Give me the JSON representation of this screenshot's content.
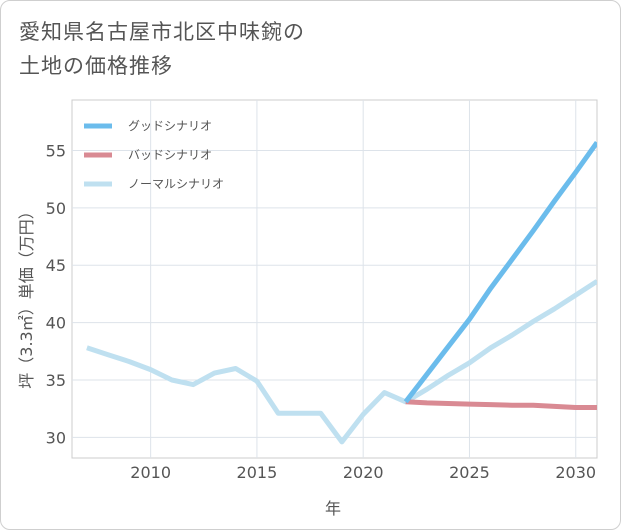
{
  "title_lines": [
    "愛知県名古屋市北区中味鋺の",
    "土地の価格推移"
  ],
  "chart_data": {
    "type": "line",
    "xlabel": "年",
    "ylabel": "坪（3.3㎡）単価（万円）",
    "xlim": [
      2006.3,
      2031
    ],
    "ylim": [
      28.2,
      59.4
    ],
    "xticks": [
      2010,
      2015,
      2020,
      2025,
      2030
    ],
    "xtick_labels": [
      "2010",
      "2015",
      "2020",
      "2025",
      "2030"
    ],
    "yticks": [
      30,
      35,
      40,
      45,
      50,
      55
    ],
    "ytick_labels": [
      "30",
      "35",
      "40",
      "45",
      "50",
      "55"
    ],
    "grid": true,
    "legend_position": "top-left",
    "series": [
      {
        "name": "グッドシナリオ",
        "color": "#6bbcec",
        "x": [
          2022,
          2023,
          2024,
          2025,
          2026,
          2027,
          2028,
          2029,
          2030,
          2031
        ],
        "y": [
          33.1,
          35.5,
          37.9,
          40.3,
          43.0,
          45.5,
          48.0,
          50.6,
          53.1,
          55.7
        ]
      },
      {
        "name": "バッドシナリオ",
        "color": "#d98a93",
        "x": [
          2022,
          2023,
          2024,
          2025,
          2026,
          2027,
          2028,
          2029,
          2030,
          2031
        ],
        "y": [
          33.1,
          33.0,
          32.95,
          32.9,
          32.85,
          32.8,
          32.8,
          32.7,
          32.6,
          32.6
        ]
      },
      {
        "name": "ノーマルシナリオ",
        "color": "#bfe0f0",
        "x": [
          2007,
          2008,
          2009,
          2010,
          2011,
          2012,
          2013,
          2014,
          2015,
          2016,
          2017,
          2018,
          2019,
          2020,
          2021,
          2022,
          2023,
          2024,
          2025,
          2026,
          2027,
          2028,
          2029,
          2030,
          2031
        ],
        "y": [
          37.8,
          37.2,
          36.6,
          35.9,
          35.0,
          34.6,
          35.6,
          36.0,
          34.9,
          32.1,
          32.1,
          32.1,
          29.6,
          32.0,
          33.9,
          33.1,
          34.2,
          35.4,
          36.5,
          37.8,
          38.9,
          40.1,
          41.2,
          42.4,
          43.6
        ]
      }
    ]
  }
}
